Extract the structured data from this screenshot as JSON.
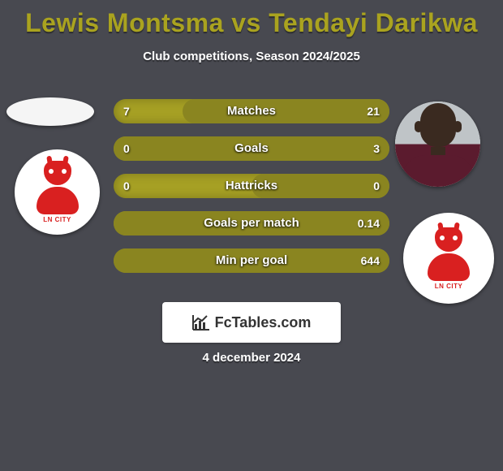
{
  "title": "Lewis Montsma vs Tendayi Darikwa",
  "subtitle": "Club competitions, Season 2024/2025",
  "date": "4 december 2024",
  "logo_text": "FcTables.com",
  "colors": {
    "bg": "#484950",
    "title": "#aaa31f",
    "bar_bg": "#a6a024",
    "bar_fill": "#8a8520",
    "imp_red": "#d92020",
    "jersey": "#5b1b2e"
  },
  "bars": [
    {
      "label": "Matches",
      "left": "7",
      "right": "21",
      "right_pct": 75
    },
    {
      "label": "Goals",
      "left": "0",
      "right": "3",
      "right_pct": 100
    },
    {
      "label": "Hattricks",
      "left": "0",
      "right": "0",
      "right_pct": 50
    },
    {
      "label": "Goals per match",
      "left": "",
      "right": "0.14",
      "right_pct": 100
    },
    {
      "label": "Min per goal",
      "left": "",
      "right": "644",
      "right_pct": 100
    }
  ],
  "club_badge_text": "LN CITY"
}
